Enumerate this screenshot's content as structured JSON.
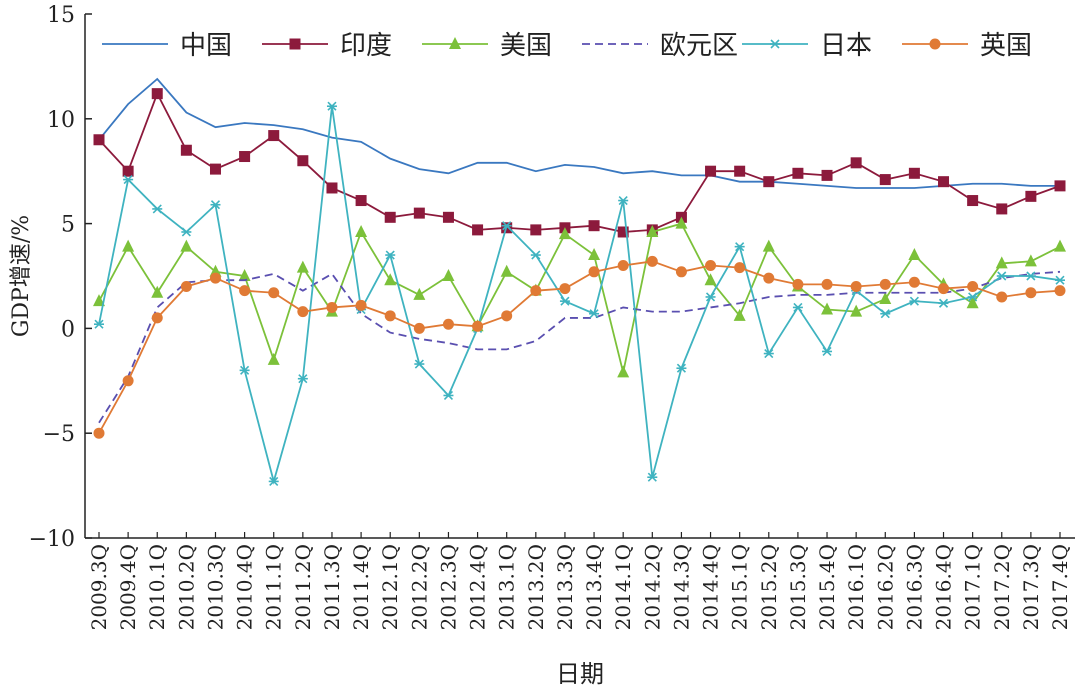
{
  "chart_data": {
    "type": "line",
    "title": "",
    "xlabel": "日期",
    "ylabel": "GDP增速/%",
    "ylim": [
      -10,
      15
    ],
    "yticks": [
      -10,
      -5,
      0,
      5,
      10,
      15
    ],
    "ytick_labels": [
      "−10",
      "−5",
      "0",
      "5",
      "10",
      "15"
    ],
    "grid": false,
    "legend": "top",
    "categories": [
      "2009.3Q",
      "2009.4Q",
      "2010.1Q",
      "2010.2Q",
      "2010.3Q",
      "2010.4Q",
      "2011.1Q",
      "2011.2Q",
      "2011.3Q",
      "2011.4Q",
      "2012.1Q",
      "2012.2Q",
      "2012.3Q",
      "2012.4Q",
      "2013.1Q",
      "2013.2Q",
      "2013.3Q",
      "2013.4Q",
      "2014.1Q",
      "2014.2Q",
      "2014.3Q",
      "2014.4Q",
      "2015.1Q",
      "2015.2Q",
      "2015.3Q",
      "2015.4Q",
      "2016.1Q",
      "2016.2Q",
      "2016.3Q",
      "2016.4Q",
      "2017.1Q",
      "2017.2Q",
      "2017.3Q",
      "2017.4Q"
    ],
    "series": [
      {
        "name": "中国",
        "color": "#3a78c0",
        "marker": "none",
        "dash": false,
        "values": [
          9.0,
          10.7,
          11.9,
          10.3,
          9.6,
          9.8,
          9.7,
          9.5,
          9.1,
          8.9,
          8.1,
          7.6,
          7.4,
          7.9,
          7.9,
          7.5,
          7.8,
          7.7,
          7.4,
          7.5,
          7.3,
          7.3,
          7.0,
          7.0,
          6.9,
          6.8,
          6.7,
          6.7,
          6.7,
          6.8,
          6.9,
          6.9,
          6.8,
          6.8
        ]
      },
      {
        "name": "印度",
        "color": "#8c1a3c",
        "marker": "square",
        "dash": false,
        "values": [
          9.0,
          7.5,
          11.2,
          8.5,
          7.6,
          8.2,
          9.2,
          8.0,
          6.7,
          6.1,
          5.3,
          5.5,
          5.3,
          4.7,
          4.8,
          4.7,
          4.8,
          4.9,
          4.6,
          4.7,
          5.3,
          7.5,
          7.5,
          7.0,
          7.4,
          7.3,
          7.9,
          7.1,
          7.4,
          7.0,
          6.1,
          5.7,
          6.3,
          6.8
        ]
      },
      {
        "name": "美国",
        "color": "#7cc13a",
        "marker": "triangle",
        "dash": false,
        "values": [
          1.3,
          3.9,
          1.7,
          3.9,
          2.7,
          2.5,
          -1.5,
          2.9,
          0.8,
          4.6,
          2.3,
          1.6,
          2.5,
          0.1,
          2.7,
          1.8,
          4.5,
          3.5,
          -2.1,
          4.6,
          5.0,
          2.3,
          0.6,
          3.9,
          2.0,
          0.9,
          0.8,
          1.4,
          3.5,
          2.1,
          1.2,
          3.1,
          3.2,
          3.9
        ]
      },
      {
        "name": "欧元区",
        "color": "#5a4fb0",
        "marker": "none",
        "dash": true,
        "values": [
          -4.5,
          -2.3,
          1.0,
          2.2,
          2.3,
          2.3,
          2.6,
          1.8,
          2.6,
          0.7,
          -0.2,
          -0.5,
          -0.7,
          -1.0,
          -1.0,
          -0.6,
          0.5,
          0.5,
          1.0,
          0.8,
          0.8,
          1.0,
          1.2,
          1.5,
          1.6,
          1.6,
          1.7,
          1.7,
          1.7,
          1.7,
          1.9,
          2.4,
          2.6,
          2.7
        ]
      },
      {
        "name": "日本",
        "color": "#3fb3c0",
        "marker": "x",
        "dash": false,
        "values": [
          0.2,
          7.1,
          5.7,
          4.6,
          5.9,
          -2.0,
          -7.3,
          -2.4,
          10.6,
          0.9,
          3.5,
          -1.7,
          -3.2,
          0.0,
          4.9,
          3.5,
          1.3,
          0.7,
          6.1,
          -7.1,
          -1.9,
          1.5,
          3.9,
          -1.2,
          1.0,
          -1.1,
          1.8,
          0.7,
          1.3,
          1.2,
          1.5,
          2.5,
          2.5,
          2.3
        ]
      },
      {
        "name": "英国",
        "color": "#e07a35",
        "marker": "circle",
        "dash": false,
        "values": [
          -5.0,
          -2.5,
          0.5,
          2.0,
          2.4,
          1.8,
          1.7,
          0.8,
          1.0,
          1.1,
          0.6,
          0.0,
          0.2,
          0.1,
          0.6,
          1.8,
          1.9,
          2.7,
          3.0,
          3.2,
          2.7,
          3.0,
          2.9,
          2.4,
          2.1,
          2.1,
          2.0,
          2.1,
          2.2,
          1.9,
          2.0,
          1.5,
          1.7,
          1.8
        ]
      }
    ]
  }
}
